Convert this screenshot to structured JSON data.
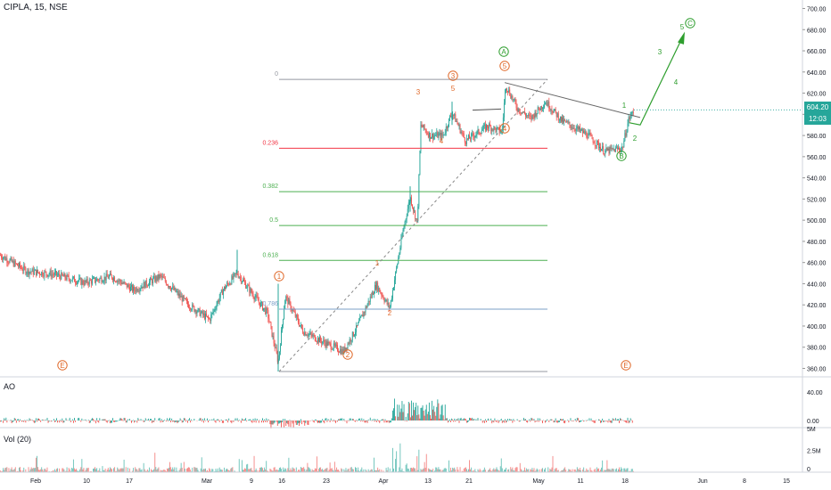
{
  "window": {
    "symbol_title": "CIPLA, 15, NSE"
  },
  "price_tag": {
    "price": "604.20",
    "countdown": "12:03"
  },
  "panes": {
    "ao_title": "AO",
    "vol_title": "Vol (20)"
  },
  "colors": {
    "up": "#26a69a",
    "down": "#ef5350",
    "axis_text": "#131722",
    "grid_border": "#d1d4dc",
    "wave_green": "#2e9e2e",
    "wave_orange": "#e06a2b",
    "fib_gray": "#9598a1",
    "fib_red": "#f23645",
    "fib_green": "#4caf50",
    "fib_blue": "#7b9fc7"
  },
  "chart_data": [
    {
      "type": "candlestick",
      "title": "CIPLA, 15, NSE",
      "y_ticks": [
        "700.00",
        "680.00",
        "660.00",
        "640.00",
        "620.00",
        "600.00",
        "580.00",
        "560.00",
        "540.00",
        "520.00",
        "500.00",
        "480.00",
        "460.00",
        "440.00",
        "420.00",
        "400.00",
        "380.00",
        "360.00"
      ],
      "ylim": [
        352,
        708
      ],
      "x_ticks": [
        "Feb",
        "10",
        "17",
        "Mar",
        "9",
        "16",
        "23",
        "Apr",
        "13",
        "21",
        "May",
        "11",
        "18",
        "Jun",
        "8",
        "15"
      ],
      "last_price": 604.2,
      "path_points": [
        {
          "x": 0,
          "y": 467
        },
        {
          "x": 30,
          "y": 452
        },
        {
          "x": 60,
          "y": 449
        },
        {
          "x": 95,
          "y": 441
        },
        {
          "x": 125,
          "y": 447
        },
        {
          "x": 150,
          "y": 434
        },
        {
          "x": 180,
          "y": 447
        },
        {
          "x": 210,
          "y": 421
        },
        {
          "x": 235,
          "y": 406
        },
        {
          "x": 250,
          "y": 434
        },
        {
          "x": 266,
          "y": 450
        },
        {
          "x": 280,
          "y": 434
        },
        {
          "x": 300,
          "y": 412
        },
        {
          "x": 312,
          "y": 366
        },
        {
          "x": 320,
          "y": 428
        },
        {
          "x": 340,
          "y": 395
        },
        {
          "x": 360,
          "y": 386
        },
        {
          "x": 385,
          "y": 376
        },
        {
          "x": 400,
          "y": 398
        },
        {
          "x": 422,
          "y": 439
        },
        {
          "x": 437,
          "y": 417
        },
        {
          "x": 452,
          "y": 490
        },
        {
          "x": 460,
          "y": 522
        },
        {
          "x": 468,
          "y": 497
        },
        {
          "x": 472,
          "y": 590
        },
        {
          "x": 482,
          "y": 580
        },
        {
          "x": 497,
          "y": 580
        },
        {
          "x": 507,
          "y": 602
        },
        {
          "x": 522,
          "y": 575
        },
        {
          "x": 547,
          "y": 589
        },
        {
          "x": 563,
          "y": 583
        },
        {
          "x": 567,
          "y": 628
        },
        {
          "x": 580,
          "y": 606
        },
        {
          "x": 595,
          "y": 596
        },
        {
          "x": 612,
          "y": 612
        },
        {
          "x": 630,
          "y": 594
        },
        {
          "x": 660,
          "y": 580
        },
        {
          "x": 678,
          "y": 565
        },
        {
          "x": 698,
          "y": 568
        },
        {
          "x": 705,
          "y": 595
        },
        {
          "x": 711,
          "y": 604
        }
      ],
      "fib_levels": [
        {
          "label": "0",
          "price": 633
        },
        {
          "label": "0.236",
          "price": 568
        },
        {
          "label": "0.382",
          "price": 527
        },
        {
          "label": "0.5",
          "price": 495
        },
        {
          "label": "0.618",
          "price": 462
        },
        {
          "label": "0.786",
          "price": 416
        },
        {
          "label": "",
          "price": 357
        }
      ],
      "wave_labels": [
        {
          "text": "E",
          "style": "circle-orange",
          "x": 70,
          "y": 410
        },
        {
          "text": "1",
          "style": "circle-orange",
          "x": 313,
          "y": 310
        },
        {
          "text": "2",
          "style": "circle-orange",
          "x": 390,
          "y": 398
        },
        {
          "text": "1",
          "style": "orange",
          "x": 423,
          "y": 295
        },
        {
          "text": "2",
          "style": "orange",
          "x": 437,
          "y": 351
        },
        {
          "text": "3",
          "style": "circle-orange",
          "x": 508,
          "y": 85
        },
        {
          "text": "3",
          "style": "orange",
          "x": 469,
          "y": 103
        },
        {
          "text": "4",
          "style": "orange",
          "x": 495,
          "y": 158
        },
        {
          "text": "5",
          "style": "orange",
          "x": 508,
          "y": 99
        },
        {
          "text": "4",
          "style": "circle-orange",
          "x": 566,
          "y": 144
        },
        {
          "text": "A",
          "style": "circle-green",
          "x": 565,
          "y": 58
        },
        {
          "text": "5",
          "style": "circle-orange",
          "x": 566,
          "y": 74
        },
        {
          "text": "B",
          "style": "circle-green",
          "x": 697,
          "y": 175
        },
        {
          "text": "E",
          "style": "circle-orange",
          "x": 702,
          "y": 410
        },
        {
          "text": "1",
          "style": "green",
          "x": 700,
          "y": 118
        },
        {
          "text": "2",
          "style": "green",
          "x": 712,
          "y": 155
        },
        {
          "text": "3",
          "style": "green",
          "x": 740,
          "y": 58
        },
        {
          "text": "4",
          "style": "green",
          "x": 758,
          "y": 92
        },
        {
          "text": "5",
          "style": "green",
          "x": 765,
          "y": 30
        },
        {
          "text": "C",
          "style": "circle-green",
          "x": 774,
          "y": 26
        }
      ]
    },
    {
      "type": "bar",
      "title": "AO",
      "y_ticks": [
        "40.00",
        "0.00"
      ],
      "ylim": [
        -10,
        60
      ]
    },
    {
      "type": "bar",
      "title": "Vol (20)",
      "y_ticks": [
        "5M",
        "2.5M",
        "0"
      ],
      "ylim": [
        0,
        5
      ]
    }
  ]
}
